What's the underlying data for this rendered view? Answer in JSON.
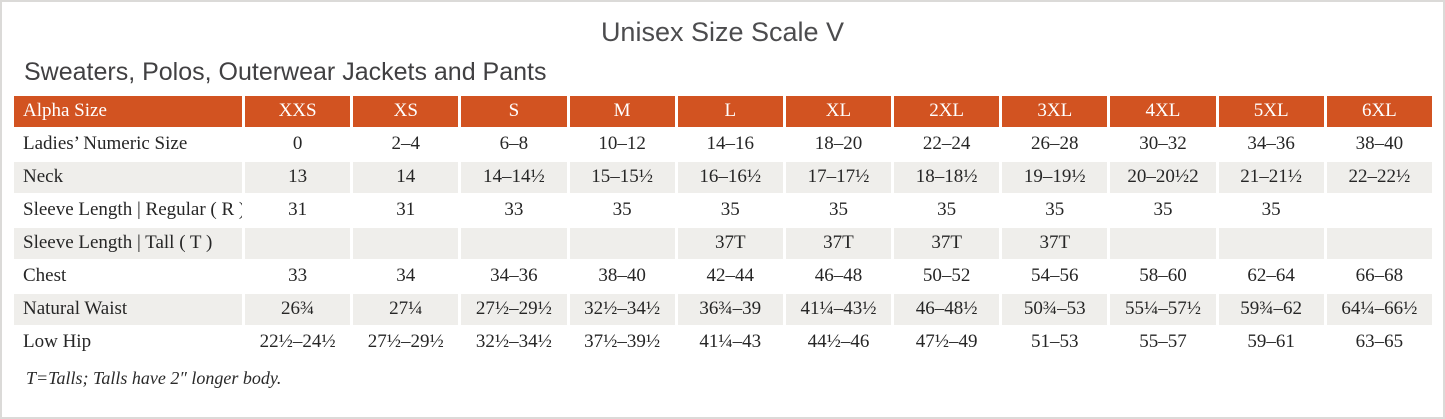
{
  "title": "Unisex Size Scale V",
  "subtitle": "Sweaters, Polos, Outerwear Jackets and Pants",
  "colors": {
    "header_bg": "#d25321",
    "header_text": "#ffffff",
    "row_alt_bg": "#efeeeb",
    "body_text": "#262626",
    "title_text": "#4c4c4e"
  },
  "table": {
    "header": [
      "Alpha Size",
      "XXS",
      "XS",
      "S",
      "M",
      "L",
      "XL",
      "2XL",
      "3XL",
      "4XL",
      "5XL",
      "6XL"
    ],
    "rows": [
      {
        "label": "Ladies’ Numeric Size",
        "cells": [
          "0",
          "2–4",
          "6–8",
          "10–12",
          "14–16",
          "18–20",
          "22–24",
          "26–28",
          "30–32",
          "34–36",
          "38–40"
        ]
      },
      {
        "label": "Neck",
        "cells": [
          "13",
          "14",
          "14–14½",
          "15–15½",
          "16–16½",
          "17–17½",
          "18–18½",
          "19–19½",
          "20–20½2",
          "21–21½",
          "22–22½"
        ]
      },
      {
        "label": "Sleeve Length | Regular ( R )",
        "cells": [
          "31",
          "31",
          "33",
          "35",
          "35",
          "35",
          "35",
          "35",
          "35",
          "35",
          ""
        ]
      },
      {
        "label": "Sleeve Length | Tall ( T )",
        "cells": [
          "",
          "",
          "",
          "",
          "37T",
          "37T",
          "37T",
          "37T",
          "",
          "",
          ""
        ]
      },
      {
        "label": "Chest",
        "cells": [
          "33",
          "34",
          "34–36",
          "38–40",
          "42–44",
          "46–48",
          "50–52",
          "54–56",
          "58–60",
          "62–64",
          "66–68"
        ]
      },
      {
        "label": "Natural Waist",
        "cells": [
          "26¾",
          "27¼",
          "27½–29½",
          "32½–34½",
          "36¾–39",
          "41¼–43½",
          "46–48½",
          "50¾–53",
          "55¼–57½",
          "59¾–62",
          "64¼–66½"
        ]
      },
      {
        "label": "Low Hip",
        "cells": [
          "22½–24½",
          "27½–29½",
          "32½–34½",
          "37½–39½",
          "41¼–43",
          "44½–46",
          "47½–49",
          "51–53",
          "55–57",
          "59–61",
          "63–65"
        ]
      }
    ]
  },
  "footnote": "T=Talls; Talls have 2″ longer body."
}
